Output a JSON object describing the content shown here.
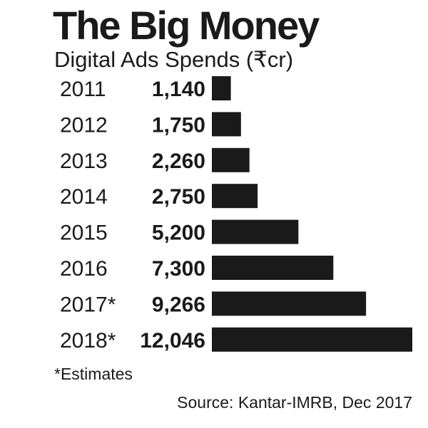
{
  "chart_data": {
    "type": "bar",
    "orientation": "horizontal",
    "title": "The Big Money",
    "subtitle": "Digital Ads Spends (₹cr)",
    "categories": [
      "2011",
      "2012",
      "2013",
      "2014",
      "2015",
      "2016",
      "2017*",
      "2018*"
    ],
    "values": [
      1140,
      1750,
      2260,
      2750,
      5200,
      7300,
      9266,
      12046
    ],
    "value_labels": [
      "1,140",
      "1,750",
      "2,260",
      "2,750",
      "5,200",
      "7,300",
      "9,266",
      "12,046"
    ],
    "note": "*Estimates",
    "source": "Source: Kantar-IMRB, Dec 2017",
    "bar_color": "#1a1a1a",
    "grid": false,
    "legend": "none"
  }
}
